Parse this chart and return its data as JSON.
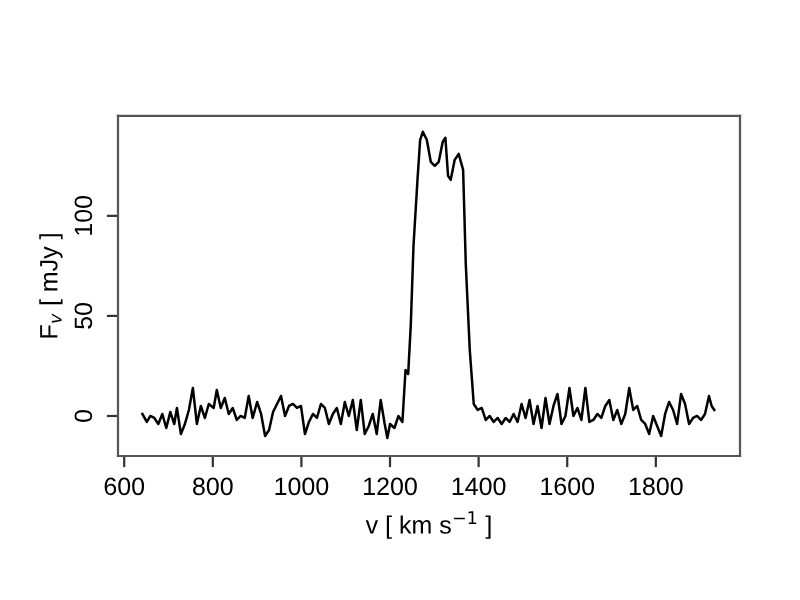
{
  "chart_data": {
    "type": "line",
    "xlabel": "v [ km s$^{−1}$ ]",
    "ylabel": "F$_{v}$ [ mJy ]",
    "series": [
      {
        "color": "#000000",
        "x": [
          641,
          651,
          659,
          668,
          677,
          686,
          695,
          704,
          713,
          719,
          728,
          737,
          746,
          755,
          764,
          773,
          782,
          791,
          802,
          809,
          818,
          827,
          836,
          845,
          854,
          863,
          872,
          881,
          890,
          900,
          909,
          918,
          927,
          936,
          945,
          954,
          963,
          972,
          981,
          990,
          999,
          1008,
          1017,
          1026,
          1035,
          1044,
          1053,
          1062,
          1071,
          1080,
          1089,
          1098,
          1107,
          1116,
          1125,
          1134,
          1143,
          1152,
          1161,
          1170,
          1179,
          1188,
          1194,
          1200,
          1210,
          1219,
          1228,
          1235,
          1241,
          1247,
          1253,
          1262,
          1268,
          1274,
          1283,
          1292,
          1301,
          1310,
          1319,
          1325,
          1331,
          1337,
          1346,
          1355,
          1365,
          1371,
          1380,
          1389,
          1398,
          1407,
          1416,
          1425,
          1434,
          1443,
          1452,
          1461,
          1470,
          1479,
          1488,
          1497,
          1506,
          1515,
          1524,
          1533,
          1542,
          1551,
          1560,
          1569,
          1578,
          1587,
          1596,
          1605,
          1614,
          1623,
          1632,
          1641,
          1650,
          1659,
          1668,
          1677,
          1686,
          1695,
          1704,
          1713,
          1722,
          1731,
          1740,
          1749,
          1758,
          1767,
          1776,
          1785,
          1794,
          1803,
          1812,
          1821,
          1830,
          1839,
          1848,
          1857,
          1866,
          1875,
          1884,
          1893,
          1902,
          1911,
          1920,
          1926,
          1932
        ],
        "values": [
          1,
          -3,
          0,
          -1,
          -4,
          1,
          -6,
          2,
          -4,
          4,
          -9,
          -4,
          3,
          14,
          -4,
          5,
          -1,
          6,
          4,
          13,
          4,
          9,
          1,
          4,
          -2,
          0,
          -1,
          10,
          -1,
          7,
          1,
          -10,
          -7,
          2,
          6,
          10,
          0,
          5,
          6,
          4,
          5,
          -9,
          -3,
          1,
          -1,
          6,
          4,
          -4,
          1,
          4,
          -4,
          7,
          0,
          8,
          -7,
          8,
          -9,
          -5,
          1,
          -9,
          8,
          -4,
          -11,
          -4,
          -6,
          0,
          -3,
          23,
          21,
          46,
          85,
          118,
          138,
          142,
          138,
          127,
          125,
          127,
          137,
          139,
          120,
          118,
          128,
          131,
          123,
          76,
          33,
          6,
          3,
          4,
          -2,
          0,
          -3,
          -1,
          -4,
          -1,
          -3,
          1,
          -3,
          6,
          -1,
          8,
          -4,
          5,
          -6,
          9,
          -4,
          5,
          11,
          -4,
          0,
          14,
          0,
          4,
          -2,
          14,
          -3,
          -2,
          1,
          -1,
          5,
          8,
          -2,
          3,
          -4,
          1,
          14,
          3,
          5,
          -2,
          -4,
          -9,
          0,
          -5,
          -10,
          1,
          7,
          3,
          -4,
          11,
          6,
          -4,
          -1,
          0,
          -2,
          1,
          10,
          5,
          3
        ]
      }
    ],
    "xlim": [
      586,
      1990
    ],
    "ylim": [
      -20,
      150
    ],
    "xticks": [
      600,
      800,
      1000,
      1200,
      1400,
      1600,
      1800
    ],
    "yticks": [
      0,
      50,
      100
    ],
    "grid": false,
    "legend": false,
    "marker": "none",
    "line_style": "solid"
  }
}
